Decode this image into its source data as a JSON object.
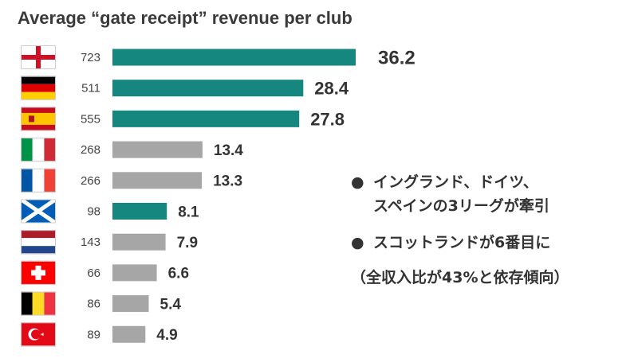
{
  "chart_data": {
    "type": "bar",
    "orientation": "horizontal",
    "title": "Average “gate receipt” revenue per club",
    "categories": [
      "England",
      "Germany",
      "Spain",
      "Italy",
      "France",
      "Scotland",
      "Netherlands",
      "Switzerland",
      "Belgium",
      "Turkey"
    ],
    "left_labels": [
      "723",
      "511",
      "555",
      "268",
      "266",
      "98",
      "143",
      "66",
      "86",
      "89"
    ],
    "values": [
      36.2,
      28.4,
      27.8,
      13.4,
      13.3,
      8.1,
      7.9,
      6.6,
      5.4,
      4.9
    ],
    "value_labels": [
      "36.2",
      "28.4",
      "27.8",
      "13.4",
      "13.3",
      "8.1",
      "7.9",
      "6.6",
      "5.4",
      "4.9"
    ],
    "highlighted": [
      true,
      true,
      true,
      false,
      false,
      true,
      false,
      false,
      false,
      false
    ],
    "colors": {
      "highlight": "#16877e",
      "default": "#a6a6a6"
    },
    "xlim": [
      0,
      36.2
    ],
    "grid": false,
    "legend": "none"
  },
  "notes": {
    "bullet": "●",
    "note1_line1": "イングランド、ドイツ、",
    "note1_line2": "スペインの3リーグが牽引",
    "note2_line1": "スコットランドが6番目に",
    "note3": "（全収入比が43%と依存傾向）"
  },
  "flag_icons": [
    "england-flag-icon",
    "germany-flag-icon",
    "spain-flag-icon",
    "italy-flag-icon",
    "france-flag-icon",
    "scotland-flag-icon",
    "netherlands-flag-icon",
    "switzerland-flag-icon",
    "belgium-flag-icon",
    "turkey-flag-icon"
  ]
}
